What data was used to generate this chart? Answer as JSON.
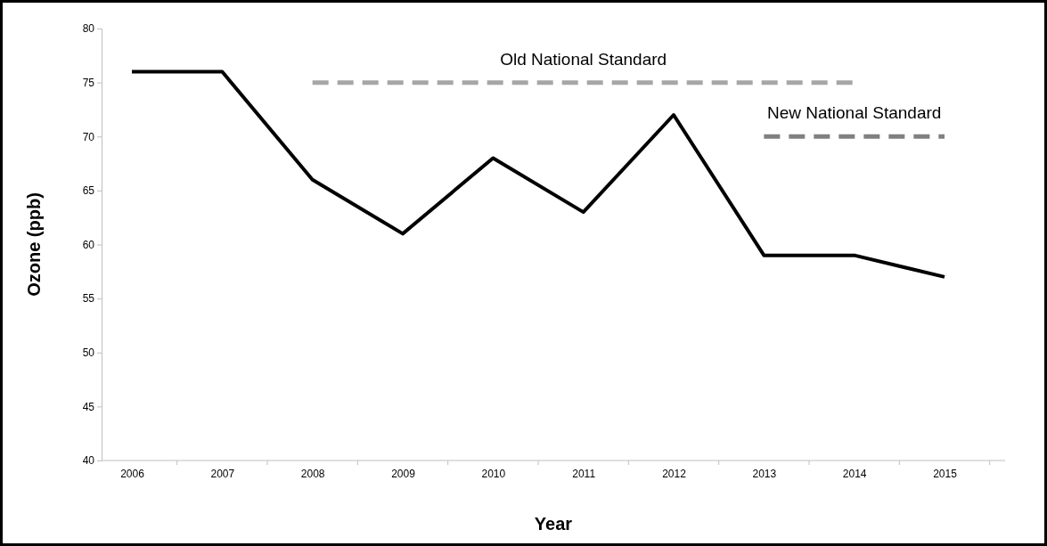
{
  "chart_data": {
    "type": "line",
    "xlabel": "Year",
    "ylabel": "Ozone (ppb)",
    "categories": [
      "2006",
      "2007",
      "2008",
      "2009",
      "2010",
      "2011",
      "2012",
      "2013",
      "2014",
      "2015"
    ],
    "ylim": [
      40,
      80
    ],
    "yticks": [
      40,
      45,
      50,
      55,
      60,
      65,
      70,
      75,
      80
    ],
    "grid": false,
    "marker": "none",
    "series": [
      {
        "color": "#000000",
        "line_style": "solid",
        "values": [
          76,
          76,
          66,
          61,
          68,
          63,
          72,
          59,
          59,
          57
        ]
      },
      {
        "name": "Old National Standard",
        "color": "#a6a6a6",
        "line_style": "dashed",
        "values": [
          null,
          null,
          75,
          75,
          75,
          75,
          75,
          75,
          75,
          null
        ]
      },
      {
        "name": "New National Standard",
        "color": "#808080",
        "line_style": "dashed",
        "values": [
          null,
          null,
          null,
          null,
          null,
          null,
          null,
          70,
          70,
          70
        ]
      }
    ]
  }
}
